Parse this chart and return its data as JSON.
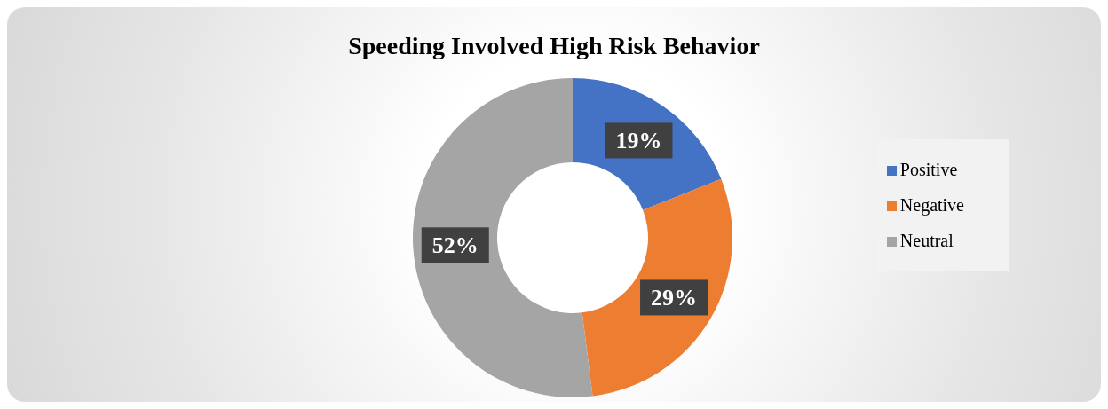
{
  "chart_data": {
    "type": "donut",
    "title": "Speeding Involved High Risk Behavior",
    "categories": [
      "Positive",
      "Negative",
      "Neutral"
    ],
    "values": [
      19,
      29,
      52
    ],
    "colors": [
      "#4472c4",
      "#ed7d31",
      "#a5a5a5"
    ],
    "value_labels": [
      "19%",
      "29%",
      "52%"
    ],
    "legend": "right"
  }
}
